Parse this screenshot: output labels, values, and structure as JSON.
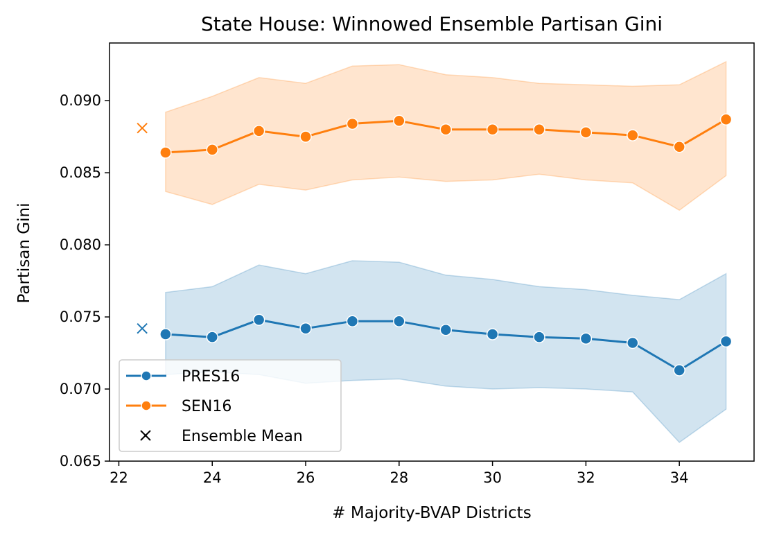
{
  "chart_data": {
    "type": "line",
    "title": "State House: Winnowed Ensemble Partisan Gini",
    "xlabel": "# Majority-BVAP Districts",
    "ylabel": "Partisan Gini",
    "xlim": [
      21.8,
      35.6
    ],
    "ylim": [
      0.065,
      0.094
    ],
    "xticks": [
      22,
      24,
      26,
      28,
      30,
      32,
      34
    ],
    "yticks": [
      0.065,
      0.07,
      0.075,
      0.08,
      0.085,
      0.09
    ],
    "xtick_labels": [
      "22",
      "24",
      "26",
      "28",
      "30",
      "32",
      "34"
    ],
    "ytick_labels": [
      "0.065",
      "0.070",
      "0.075",
      "0.080",
      "0.085",
      "0.090"
    ],
    "grid": false,
    "legend_position": "lower-left",
    "x": [
      23,
      24,
      25,
      26,
      27,
      28,
      29,
      30,
      31,
      32,
      33,
      34,
      35
    ],
    "series": [
      {
        "name": "PRES16",
        "color": "#1f77b4",
        "values": [
          0.0738,
          0.0736,
          0.0748,
          0.0742,
          0.0747,
          0.0747,
          0.0741,
          0.0738,
          0.0736,
          0.0735,
          0.0732,
          0.0713,
          0.0733
        ],
        "band_upper": [
          0.0767,
          0.0771,
          0.0786,
          0.078,
          0.0789,
          0.0788,
          0.0779,
          0.0776,
          0.0771,
          0.0769,
          0.0765,
          0.0762,
          0.078
        ],
        "band_lower": [
          0.071,
          0.0712,
          0.071,
          0.0704,
          0.0706,
          0.0707,
          0.0702,
          0.07,
          0.0701,
          0.07,
          0.0698,
          0.0663,
          0.0686
        ],
        "ensemble_mean": 0.0742
      },
      {
        "name": "SEN16",
        "color": "#ff7f0e",
        "values": [
          0.0864,
          0.0866,
          0.0879,
          0.0875,
          0.0884,
          0.0886,
          0.088,
          0.088,
          0.088,
          0.0878,
          0.0876,
          0.0868,
          0.0887
        ],
        "band_upper": [
          0.0892,
          0.0903,
          0.0916,
          0.0912,
          0.0924,
          0.0925,
          0.0918,
          0.0916,
          0.0912,
          0.0911,
          0.091,
          0.0911,
          0.0927
        ],
        "band_lower": [
          0.0837,
          0.0828,
          0.0842,
          0.0838,
          0.0845,
          0.0847,
          0.0844,
          0.0845,
          0.0849,
          0.0845,
          0.0843,
          0.0824,
          0.0848
        ],
        "ensemble_mean": 0.0881
      }
    ],
    "ensemble_mean_x": 22.5,
    "legend": [
      {
        "label": "PRES16",
        "color": "#1f77b4",
        "marker": "circle-line"
      },
      {
        "label": "SEN16",
        "color": "#ff7f0e",
        "marker": "circle-line"
      },
      {
        "label": "Ensemble Mean",
        "color": "#000000",
        "marker": "x"
      }
    ]
  }
}
